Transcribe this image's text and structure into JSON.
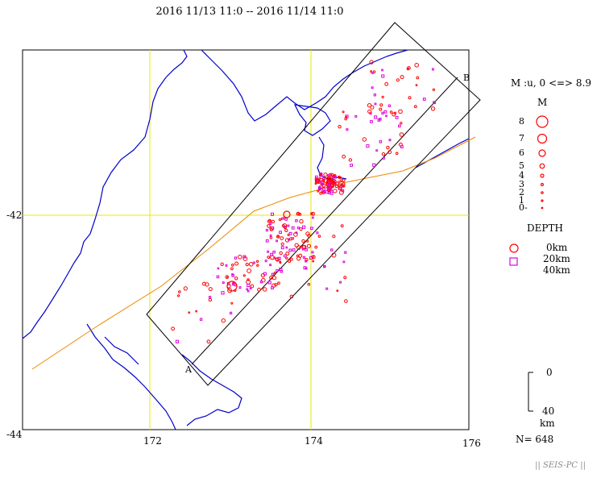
{
  "title": "2016 11/13 11:0 -- 2016 11/14 11:0",
  "axes": {
    "lat_labels": [
      "-42",
      "-44"
    ],
    "lon_labels": [
      "172",
      "174",
      "176"
    ]
  },
  "section": {
    "start_label": "A",
    "end_label": "B"
  },
  "legend": {
    "mag_header": "M :u, 0 <=> 8.9",
    "mag_title": "M",
    "mag_scale": [
      "8",
      "7",
      "6",
      "5",
      "4",
      "3",
      "2",
      "1",
      "0-"
    ],
    "depth_title": "DEPTH",
    "depth_labels": [
      "0km",
      "20km",
      "40km"
    ],
    "scale_top": "0",
    "scale_bottom": "40",
    "scale_unit": "km"
  },
  "count": "N= 648",
  "footer": "|| SEIS-PC ||",
  "colors": {
    "coast": "#0000cc",
    "grid": "#e8e800",
    "fault": "#ee8800",
    "shallow": "#ff0000",
    "deep": "#dd00dd",
    "frame": "#000000"
  }
}
